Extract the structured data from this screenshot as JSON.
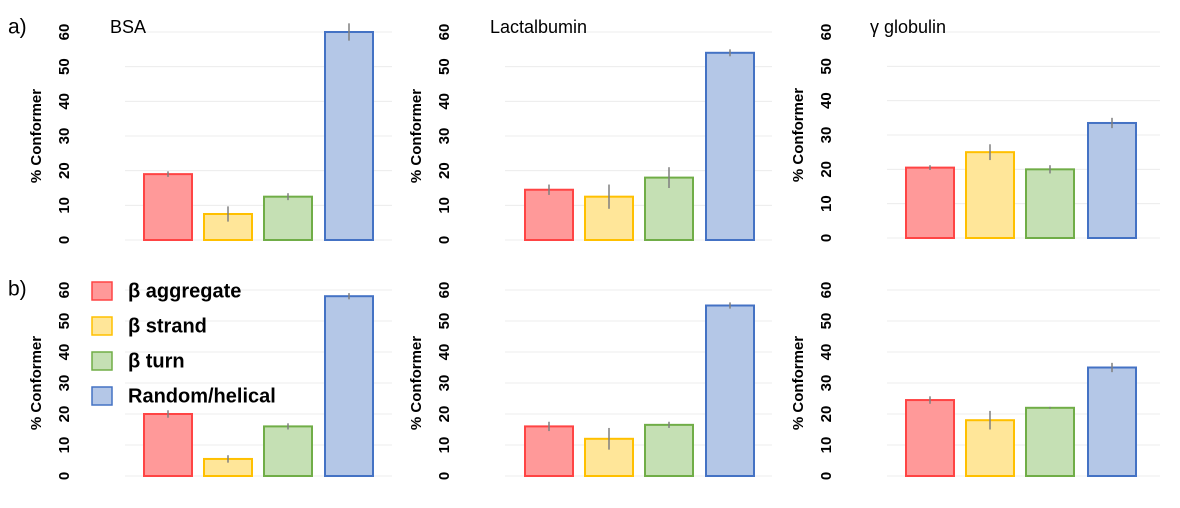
{
  "panel_labels": [
    "a)",
    "b)"
  ],
  "legend": [
    {
      "name": "β aggregate",
      "color": "#ff9999"
    },
    {
      "name": "β strand",
      "color": "#ffe699"
    },
    {
      "name": "β turn",
      "color": "#c5e0b4"
    },
    {
      "name": "Random/helical",
      "color": "#b4c7e7"
    }
  ],
  "chart_data": [
    {
      "type": "bar",
      "title": "BSA",
      "ylabel": "% Conformer",
      "values": [
        19,
        7.5,
        12.5,
        60
      ],
      "errors": [
        0.8,
        2.2,
        1,
        2.5
      ],
      "colors": [
        "#ff9999",
        "#ffe699",
        "#c5e0b4",
        "#b4c7e7"
      ],
      "edge_colors": [
        "#ff4444",
        "#ffc000",
        "#70ad47",
        "#4472c4"
      ],
      "ylim": [
        0,
        60
      ],
      "yticks": [
        0,
        10,
        20,
        30,
        40,
        50,
        60
      ],
      "grid": true
    },
    {
      "type": "bar",
      "title": "Lactalbumin",
      "ylabel": "% Conformer",
      "values": [
        14.5,
        12.5,
        18,
        54
      ],
      "errors": [
        1.5,
        3.5,
        3,
        1
      ],
      "colors": [
        "#ff9999",
        "#ffe699",
        "#c5e0b4",
        "#b4c7e7"
      ],
      "edge_colors": [
        "#ff4444",
        "#ffc000",
        "#70ad47",
        "#4472c4"
      ],
      "ylim": [
        0,
        60
      ],
      "yticks": [
        0,
        10,
        20,
        30,
        40,
        50,
        60
      ],
      "grid": true
    },
    {
      "type": "bar",
      "title": "γ globulin",
      "ylabel": "% Conformer",
      "values": [
        20.5,
        25,
        20,
        33.5
      ],
      "errors": [
        0.7,
        2.3,
        1.2,
        1.5
      ],
      "colors": [
        "#ff9999",
        "#ffe699",
        "#c5e0b4",
        "#b4c7e7"
      ],
      "edge_colors": [
        "#ff4444",
        "#ffc000",
        "#70ad47",
        "#4472c4"
      ],
      "ylim": [
        0,
        60
      ],
      "yticks": [
        0,
        10,
        20,
        30,
        40,
        50,
        60
      ],
      "grid": true
    },
    {
      "type": "bar",
      "ylabel": "% Conformer",
      "values": [
        20,
        5.5,
        16,
        58
      ],
      "errors": [
        1.2,
        1.2,
        1,
        1
      ],
      "colors": [
        "#ff9999",
        "#ffe699",
        "#c5e0b4",
        "#b4c7e7"
      ],
      "edge_colors": [
        "#ff4444",
        "#ffc000",
        "#70ad47",
        "#4472c4"
      ],
      "ylim": [
        0,
        60
      ],
      "yticks": [
        0,
        10,
        20,
        30,
        40,
        50,
        60
      ],
      "grid": true
    },
    {
      "type": "bar",
      "ylabel": "% Conformer",
      "values": [
        16,
        12,
        16.5,
        55
      ],
      "errors": [
        1.5,
        3.5,
        1,
        1
      ],
      "colors": [
        "#ff9999",
        "#ffe699",
        "#c5e0b4",
        "#b4c7e7"
      ],
      "edge_colors": [
        "#ff4444",
        "#ffc000",
        "#70ad47",
        "#4472c4"
      ],
      "ylim": [
        0,
        60
      ],
      "yticks": [
        0,
        10,
        20,
        30,
        40,
        50,
        60
      ],
      "grid": true
    },
    {
      "type": "bar",
      "ylabel": "% Conformer",
      "values": [
        24.5,
        18,
        22,
        35
      ],
      "errors": [
        1.2,
        3,
        0.3,
        1.5
      ],
      "colors": [
        "#ff9999",
        "#ffe699",
        "#c5e0b4",
        "#b4c7e7"
      ],
      "edge_colors": [
        "#ff4444",
        "#ffc000",
        "#70ad47",
        "#4472c4"
      ],
      "ylim": [
        0,
        60
      ],
      "yticks": [
        0,
        10,
        20,
        30,
        40,
        50,
        60
      ],
      "grid": true
    }
  ]
}
